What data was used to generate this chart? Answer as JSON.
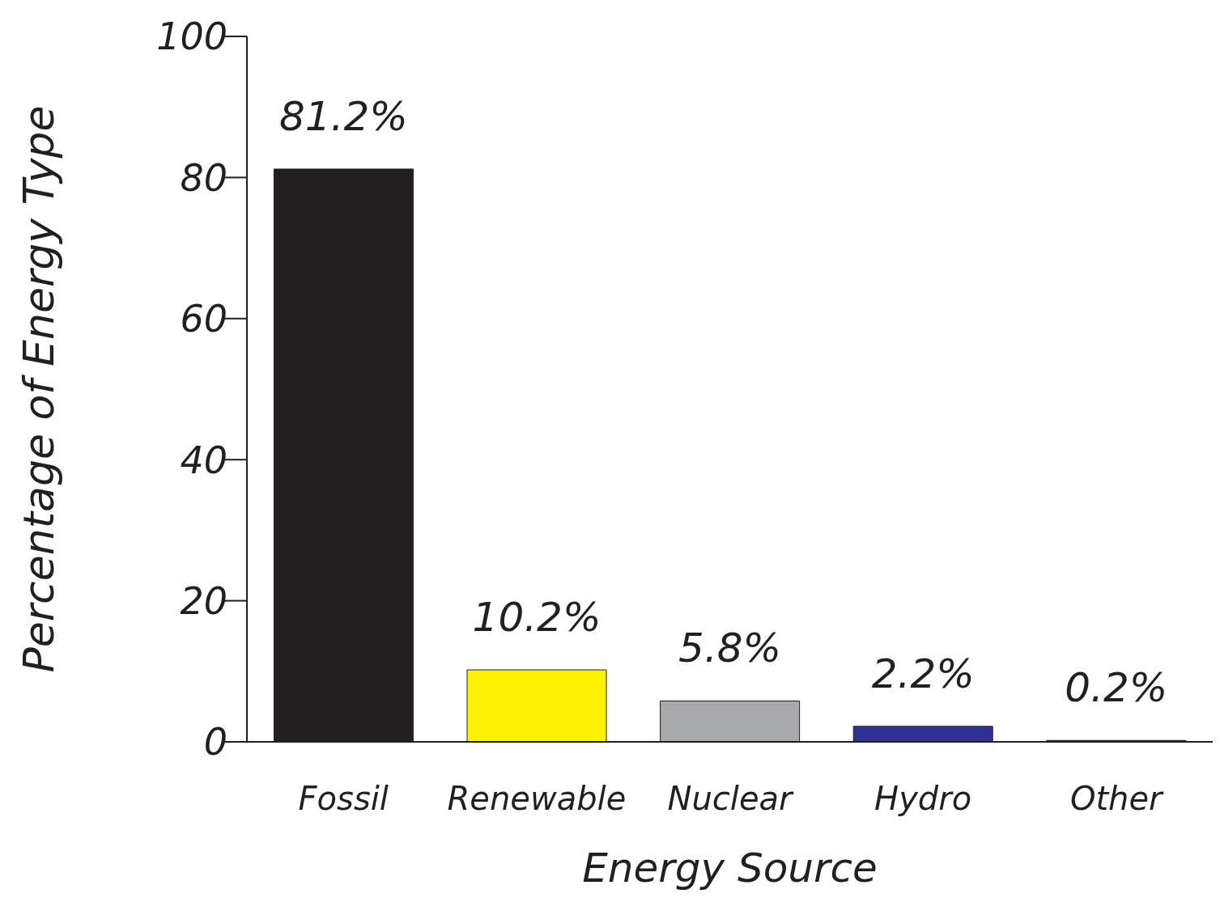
{
  "chart_data": {
    "type": "bar",
    "xlabel": "Energy Source",
    "ylabel": "Percentage of Energy Type",
    "categories": [
      "Fossil",
      "Renewable",
      "Nuclear",
      "Hydro",
      "Other"
    ],
    "values": [
      81.2,
      10.2,
      5.8,
      2.2,
      0.2
    ],
    "colors": [
      "#231f20",
      "#fff200",
      "#a7a9ac",
      "#2e3192",
      "#231f20"
    ],
    "value_labels": [
      "81.2%",
      "10.2%",
      "5.8%",
      "2.2%",
      "0.2%"
    ],
    "ylim": [
      0,
      100
    ],
    "yticks": [
      0,
      20,
      40,
      60,
      80,
      100
    ],
    "grid": false,
    "legend": false
  }
}
